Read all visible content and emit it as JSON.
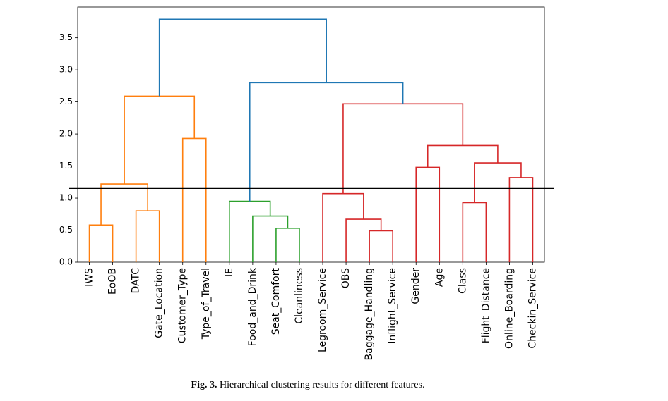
{
  "chart_data": {
    "type": "dendrogram",
    "ylim": [
      0,
      3.98
    ],
    "yticks": [
      {
        "value": 0,
        "label": "0.0"
      },
      {
        "value": 0.5,
        "label": "0.5"
      },
      {
        "value": 1,
        "label": "1.0"
      },
      {
        "value": 1.5,
        "label": "1.5"
      },
      {
        "value": 2,
        "label": "2.0"
      },
      {
        "value": 2.5,
        "label": "2.5"
      },
      {
        "value": 3,
        "label": "3.0"
      },
      {
        "value": 3.5,
        "label": "3.5"
      }
    ],
    "threshold": 1.15,
    "threshold_color": "#000000",
    "tree": {
      "height": 3.79,
      "color": "#1f77b4",
      "children": [
        {
          "height": 2.59,
          "color": "#ff7f0e",
          "children": [
            {
              "height": 1.22,
              "children": [
                {
                  "height": 0.58,
                  "children": [
                    "IWS",
                    "EoOB"
                  ]
                },
                {
                  "height": 0.8,
                  "children": [
                    "DATC",
                    "Gate_Location"
                  ]
                }
              ]
            },
            {
              "height": 1.93,
              "children": [
                "Customer_Type",
                "Type_of_Travel"
              ]
            }
          ]
        },
        {
          "height": 2.8,
          "color": "#1f77b4",
          "children": [
            {
              "height": 0.95,
              "color": "#2ca02c",
              "children": [
                "IE",
                {
                  "height": 0.72,
                  "children": [
                    "Food_and_Drink",
                    {
                      "height": 0.53,
                      "children": [
                        "Seat_Comfort",
                        "Cleanliness"
                      ]
                    }
                  ]
                }
              ]
            },
            {
              "height": 2.47,
              "color": "#d62728",
              "children": [
                {
                  "height": 1.07,
                  "children": [
                    "Legroom_Service",
                    {
                      "height": 0.67,
                      "children": [
                        "OBS",
                        {
                          "height": 0.49,
                          "children": [
                            "Baggage_Handling",
                            "Inflight_Service"
                          ]
                        }
                      ]
                    }
                  ]
                },
                {
                  "height": 1.82,
                  "children": [
                    {
                      "height": 1.48,
                      "children": [
                        "Gender",
                        "Age"
                      ]
                    },
                    {
                      "height": 1.55,
                      "children": [
                        {
                          "height": 0.93,
                          "children": [
                            "Class",
                            "Flight_Distance"
                          ]
                        },
                        {
                          "height": 1.32,
                          "children": [
                            "Online_Boarding",
                            "Checkin_Service"
                          ]
                        }
                      ]
                    }
                  ]
                }
              ]
            }
          ]
        }
      ]
    },
    "caption_label": "Fig. 3.",
    "caption": "Hierarchical clustering results for different features."
  }
}
